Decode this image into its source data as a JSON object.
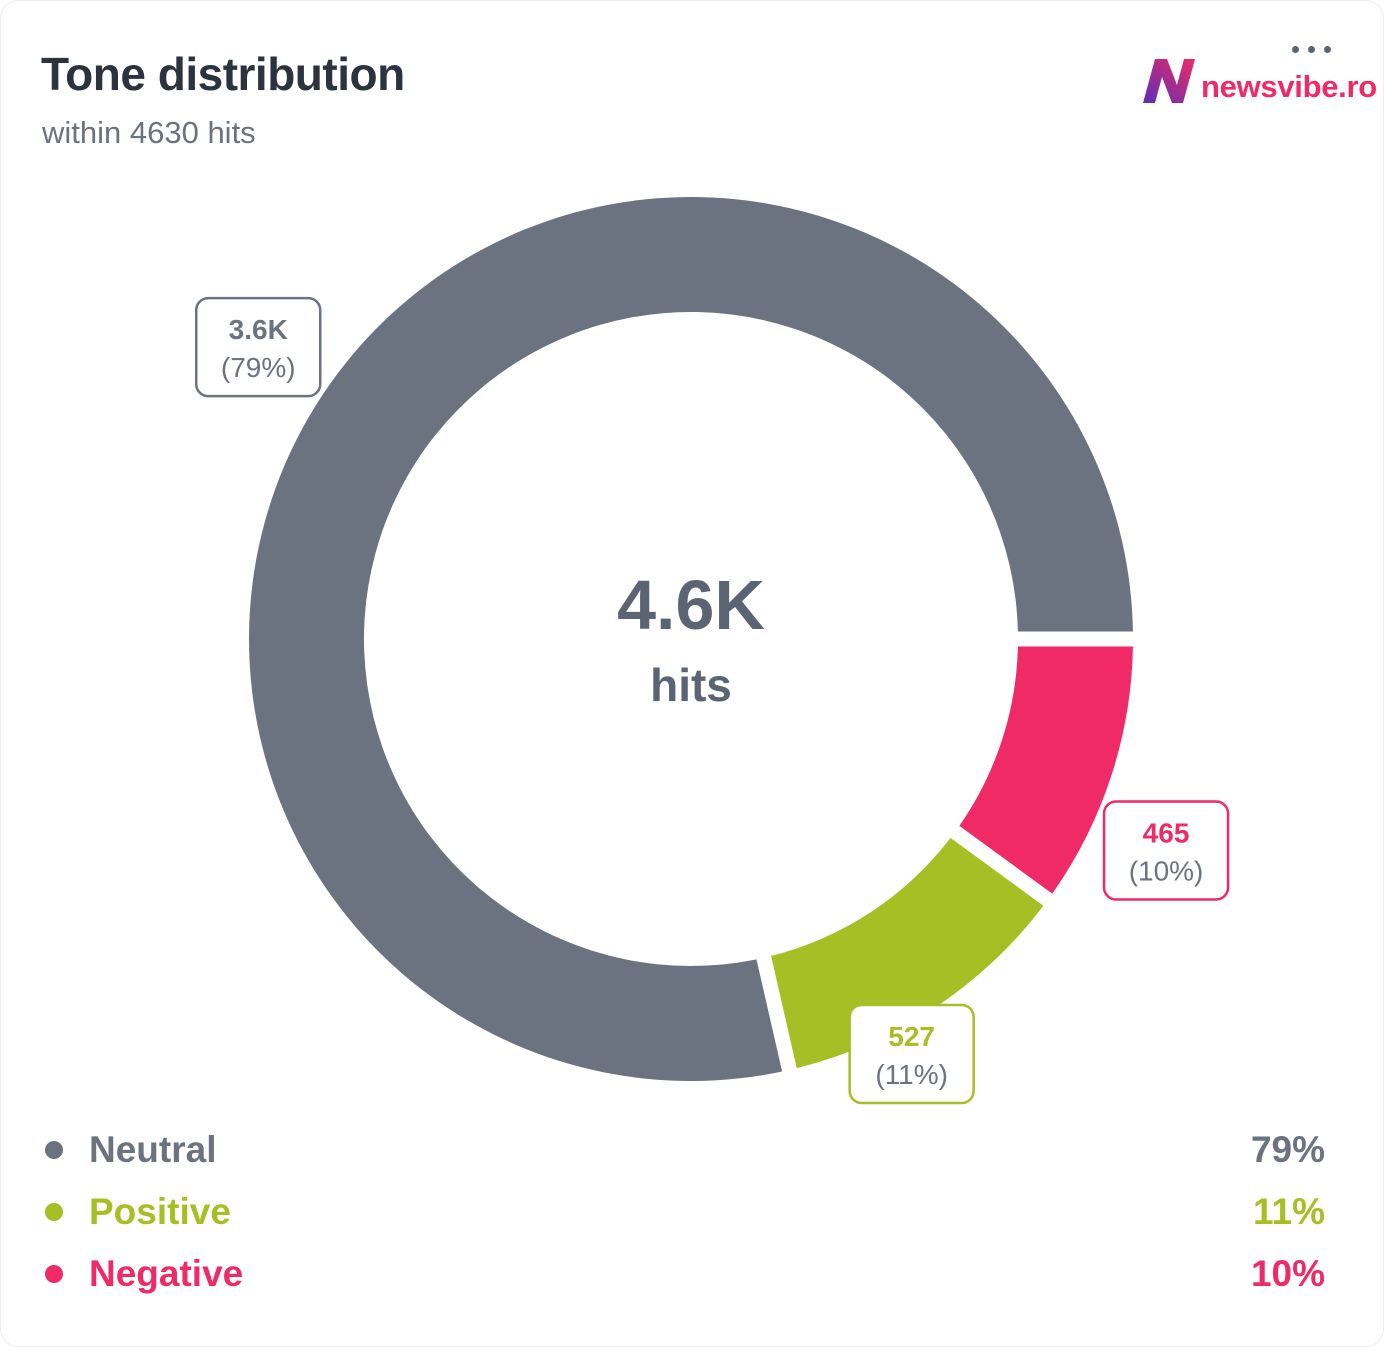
{
  "header": {
    "title": "Tone distribution",
    "subtitle": "within 4630 hits",
    "logo_text": "newsvibe.ro"
  },
  "colors": {
    "neutral": "#6b7280",
    "positive": "#a6bf24",
    "negative": "#ef2a67",
    "title": "#2b3240"
  },
  "icons": {
    "menu": "more-dots-icon",
    "logo": "newsvibe-logo-icon"
  },
  "chart_data": {
    "type": "pie",
    "variant": "donut",
    "total": 4630,
    "center_value": "4.6K",
    "center_label": "hits",
    "slices": [
      {
        "name": "Neutral",
        "value": 3638,
        "value_label": "3.6K",
        "percent_label": "(79%)",
        "legend_percent": "79%",
        "color": "#6b7280"
      },
      {
        "name": "Negative",
        "value": 465,
        "value_label": "465",
        "percent_label": "(10%)",
        "legend_percent": "10%",
        "color": "#ef2a67"
      },
      {
        "name": "Positive",
        "value": 527,
        "value_label": "527",
        "percent_label": "(11%)",
        "legend_percent": "11%",
        "color": "#a6bf24"
      }
    ],
    "legend_order": [
      "Neutral",
      "Positive",
      "Negative"
    ],
    "legend_placement": "bottom"
  }
}
